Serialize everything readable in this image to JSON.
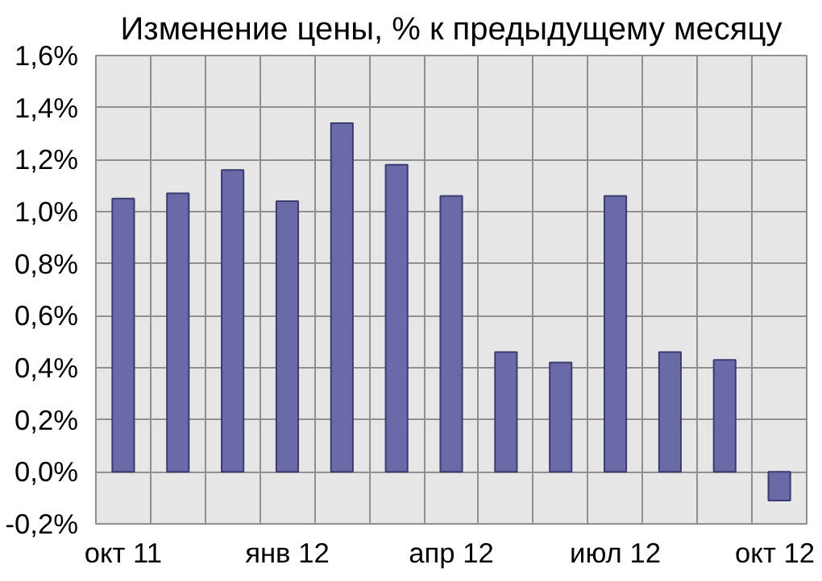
{
  "chart_data": {
    "type": "bar",
    "title": "Изменение цены, % к предыдущему месяцу",
    "categories": [
      "окт 11",
      null,
      null,
      "янв 12",
      null,
      null,
      "апр 12",
      null,
      null,
      "июл 12",
      null,
      null,
      "окт 12"
    ],
    "values": [
      1.05,
      1.07,
      1.16,
      1.04,
      1.34,
      1.18,
      1.06,
      0.46,
      0.42,
      1.06,
      0.46,
      0.43,
      -0.11
    ],
    "color": "#6b6aa8",
    "ylim": [
      -0.2,
      1.6
    ],
    "yticks": [
      {
        "value": -0.2,
        "label": "-0,2%"
      },
      {
        "value": 0,
        "label": "0,0%"
      },
      {
        "value": 0.2,
        "label": "0,2%"
      },
      {
        "value": 0.4,
        "label": "0,4%"
      },
      {
        "value": 0.6,
        "label": "0,6%"
      },
      {
        "value": 0.8,
        "label": "0,8%"
      },
      {
        "value": 1.0,
        "label": "1,0%"
      },
      {
        "value": 1.2,
        "label": "1,2%"
      },
      {
        "value": 1.4,
        "label": "1,4%"
      },
      {
        "value": 1.6,
        "label": "1,6%"
      }
    ],
    "grid": true
  }
}
